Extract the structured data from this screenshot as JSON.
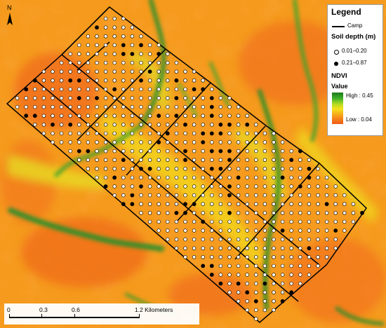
{
  "legend": {
    "title": "Legend",
    "camp": "Camp",
    "soil_depth_title": "Soil depth (m)",
    "soil_shallow": "0.01–0.20",
    "soil_deep": "0.21–0.87",
    "ndvi_title": "NDVI",
    "value_title": "Value",
    "high": "High : 0.45",
    "low": "Low : 0.04"
  },
  "scale": {
    "t0": "0",
    "t1": "0.3",
    "t2": "0.6",
    "t3": "1.2 Kilometers"
  },
  "north": "N",
  "colors": {
    "ndvi_high": "#1f7a1f",
    "ndvi_mid": "#f5e21b",
    "ndvi_low": "#f05a18",
    "camp_line": "#000000"
  },
  "icons": [
    "north-arrow-icon",
    "open-circle-symbol",
    "filled-circle-symbol"
  ]
}
